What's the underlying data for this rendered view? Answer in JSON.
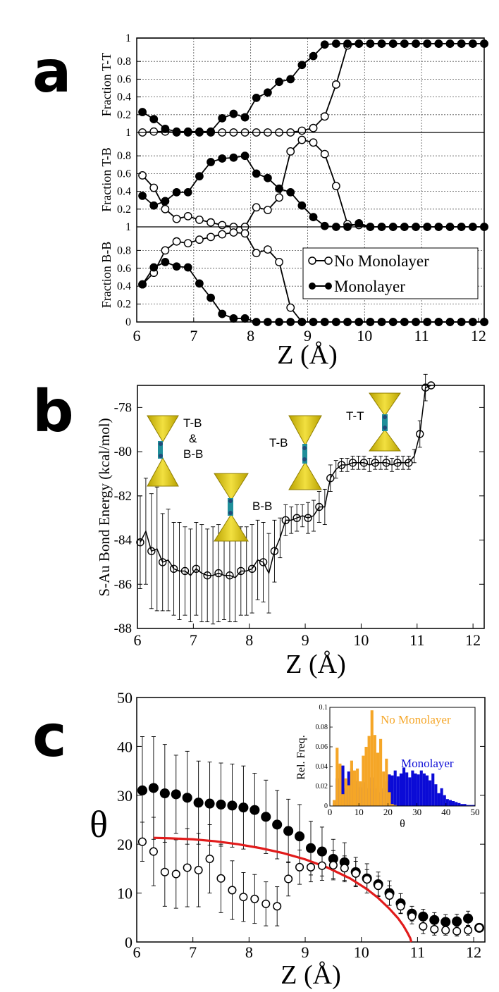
{
  "panels": {
    "a": "a",
    "b": "b",
    "c": "c"
  },
  "chart_data": [
    {
      "type": "line",
      "panel": "a",
      "xlabel": "Z (Å)",
      "xlim": [
        6,
        12.1
      ],
      "x_ticks": [
        "6",
        "7",
        "8",
        "9",
        "10",
        "11",
        "12"
      ],
      "y_ticks_top": [
        "1",
        "0.8",
        "0.6",
        "0.4",
        "0.2"
      ],
      "y_ticks_mid": [
        "1",
        "0.8",
        "0.6",
        "0.4",
        "0.2"
      ],
      "y_ticks_bot": [
        "1",
        "0.8",
        "0.6",
        "0.4",
        "0.2",
        "0"
      ],
      "legend": [
        "No Monolayer",
        "Monolayer"
      ],
      "x": [
        6.1,
        6.3,
        6.5,
        6.7,
        6.9,
        7.1,
        7.3,
        7.5,
        7.7,
        7.9,
        8.1,
        8.3,
        8.5,
        8.7,
        8.9,
        9.1,
        9.3,
        9.5,
        9.7,
        9.9,
        10.1,
        10.3,
        10.5,
        10.7,
        10.9,
        11.1,
        11.3,
        11.5,
        11.7,
        11.9,
        12.1
      ],
      "subplots": [
        {
          "ylabel": "Fraction T-T",
          "series": [
            {
              "name": "No Monolayer",
              "values": [
                0,
                0.01,
                0.01,
                0,
                0,
                0,
                0,
                0,
                0,
                0,
                0,
                0,
                0,
                0,
                0.02,
                0.05,
                0.18,
                0.54,
                0.98,
                1,
                1,
                1,
                1,
                1,
                1,
                1,
                1,
                1,
                1,
                1,
                1
              ]
            },
            {
              "name": "Monolayer",
              "values": [
                0.23,
                0.15,
                0.04,
                0.01,
                0.01,
                0.01,
                0.01,
                0.16,
                0.21,
                0.17,
                0.39,
                0.45,
                0.57,
                0.6,
                0.76,
                0.86,
                0.99,
                1,
                1,
                1,
                1,
                1,
                1,
                1,
                1,
                1,
                1,
                1,
                1,
                1,
                1
              ]
            }
          ]
        },
        {
          "ylabel": "Fraction T-B",
          "series": [
            {
              "name": "No Monolayer",
              "values": [
                0.58,
                0.44,
                0.2,
                0.09,
                0.12,
                0.08,
                0.05,
                0.02,
                0,
                0,
                0.22,
                0.19,
                0.33,
                0.85,
                0.98,
                0.95,
                0.82,
                0.46,
                0.03,
                0.02,
                0,
                0,
                0,
                0,
                0,
                0,
                0,
                0,
                0,
                0,
                0
              ]
            },
            {
              "name": "Monolayer",
              "values": [
                0.35,
                0.24,
                0.29,
                0.39,
                0.39,
                0.57,
                0.73,
                0.77,
                0.78,
                0.8,
                0.6,
                0.55,
                0.43,
                0.39,
                0.24,
                0.11,
                0.01,
                0,
                0,
                0.04,
                0,
                0,
                0,
                0,
                0,
                0,
                0,
                0,
                0,
                0,
                0
              ]
            }
          ]
        },
        {
          "ylabel": "Fraction B-B",
          "series": [
            {
              "name": "No Monolayer",
              "values": [
                0.42,
                0.55,
                0.8,
                0.9,
                0.88,
                0.92,
                0.95,
                0.98,
                1,
                0.99,
                0.77,
                0.81,
                0.67,
                0.16,
                0,
                0,
                0,
                0,
                0,
                0,
                0,
                0,
                0,
                0,
                0,
                0,
                0,
                0,
                0,
                0,
                0
              ]
            },
            {
              "name": "Monolayer",
              "values": [
                0.42,
                0.61,
                0.67,
                0.62,
                0.61,
                0.43,
                0.27,
                0.09,
                0.04,
                0.04,
                0,
                0,
                0,
                0,
                0,
                0,
                0,
                0,
                0,
                0,
                0,
                0,
                0,
                0,
                0,
                0,
                0,
                0,
                0,
                0,
                0
              ]
            }
          ]
        }
      ]
    },
    {
      "type": "line",
      "panel": "b",
      "xlabel": "Z (Å)",
      "ylabel": "S-Au Bond Energy (kcal/mol)",
      "xlim": [
        6,
        12.2
      ],
      "ylim": [
        -88,
        -77
      ],
      "x_ticks": [
        "6",
        "7",
        "8",
        "9",
        "10",
        "11",
        "12"
      ],
      "y_ticks": [
        "-78",
        "-80",
        "-82",
        "-84",
        "-86",
        "-88"
      ],
      "annotations": [
        "T-B",
        "&",
        "B-B",
        "B-B",
        "T-B",
        "T-T"
      ],
      "x": [
        6.05,
        6.15,
        6.25,
        6.35,
        6.45,
        6.55,
        6.65,
        6.75,
        6.85,
        6.95,
        7.05,
        7.15,
        7.25,
        7.35,
        7.45,
        7.55,
        7.65,
        7.75,
        7.85,
        7.95,
        8.05,
        8.15,
        8.25,
        8.35,
        8.45,
        8.55,
        8.65,
        8.75,
        8.85,
        8.95,
        9.05,
        9.15,
        9.25,
        9.35,
        9.45,
        9.55,
        9.65,
        9.75,
        9.85,
        9.95,
        10.05,
        10.15,
        10.25,
        10.35,
        10.45,
        10.55,
        10.65,
        10.75,
        10.85,
        10.95,
        11.05,
        11.15,
        11.25
      ],
      "values": [
        -84.1,
        -83.6,
        -84.5,
        -84.4,
        -85,
        -84.9,
        -85.3,
        -85.4,
        -85.4,
        -85.6,
        -85.3,
        -85.5,
        -85.6,
        -85.6,
        -85.5,
        -85.6,
        -85.6,
        -85.7,
        -85.4,
        -85.4,
        -85.3,
        -84.9,
        -85,
        -85.5,
        -84.5,
        -83.9,
        -83.1,
        -83.1,
        -83,
        -82.9,
        -83,
        -82.9,
        -82.5,
        -82.5,
        -81.2,
        -80.8,
        -80.6,
        -80.6,
        -80.5,
        -80.5,
        -80.5,
        -80.6,
        -80.5,
        -80.5,
        -80.5,
        -80.6,
        -80.5,
        -80.5,
        -80.5,
        -80.2,
        -79.2,
        -77.1,
        -77
      ],
      "errors": [
        2.1,
        2.4,
        2.6,
        2.8,
        2.2,
        2.3,
        2.1,
        2.2,
        2.0,
        2.1,
        2.1,
        2.2,
        2.1,
        2.2,
        2.2,
        2.0,
        2.1,
        2.0,
        2.0,
        2.0,
        2.0,
        1.8,
        1.8,
        1.8,
        1.4,
        0.9,
        0.7,
        0.6,
        0.6,
        0.5,
        0.7,
        0.7,
        0.7,
        0.8,
        0.6,
        0.4,
        0.3,
        0.3,
        0.3,
        0.3,
        0.3,
        0.3,
        0.3,
        0.3,
        0.3,
        0.3,
        0.3,
        0.3,
        0.3,
        0.3,
        0.6,
        0.6,
        0
      ]
    },
    {
      "type": "scatter",
      "panel": "c",
      "xlabel": "Z (Å)",
      "ylabel": "θ",
      "xlim": [
        6,
        12.2
      ],
      "ylim": [
        0,
        50
      ],
      "x_ticks": [
        "6",
        "7",
        "8",
        "9",
        "10",
        "11",
        "12"
      ],
      "y_ticks": [
        "50",
        "40",
        "30",
        "20",
        "10",
        "0"
      ],
      "series": [
        {
          "name": "Monolayer",
          "x": [
            6.1,
            6.3,
            6.5,
            6.7,
            6.9,
            7.1,
            7.3,
            7.5,
            7.7,
            7.9,
            8.1,
            8.3,
            8.5,
            8.7,
            8.9,
            9.1,
            9.3,
            9.5,
            9.7,
            9.9,
            10.1,
            10.3,
            10.5,
            10.7,
            10.9,
            11.1,
            11.3,
            11.5,
            11.7,
            11.9,
            12.1
          ],
          "values": [
            31,
            31.5,
            30.4,
            30.2,
            29.5,
            28.5,
            28.3,
            28.1,
            27.9,
            27.5,
            27,
            25.6,
            24,
            22.7,
            21.6,
            19.2,
            18.5,
            17,
            16.3,
            14.3,
            13,
            11.8,
            10,
            7.9,
            5.8,
            5.2,
            4.5,
            4.1,
            4.2,
            4.8,
            2.9
          ],
          "errors": [
            11,
            10.5,
            10,
            8,
            9.5,
            8.5,
            8.5,
            8.5,
            8.5,
            8.5,
            7.5,
            7.5,
            7,
            6.5,
            6.5,
            5.5,
            5,
            4,
            4,
            3,
            3,
            2.5,
            2.5,
            2,
            1.5,
            1.5,
            1.5,
            1.5,
            1.5,
            1.5,
            0
          ]
        },
        {
          "name": "No Monolayer",
          "x": [
            6.1,
            6.3,
            6.5,
            6.7,
            6.9,
            7.1,
            7.3,
            7.5,
            7.7,
            7.9,
            8.1,
            8.3,
            8.5,
            8.7,
            8.9,
            9.1,
            9.3,
            9.5,
            9.7,
            9.9,
            10.1,
            10.3,
            10.5,
            10.7,
            10.9,
            11.1,
            11.3,
            11.5,
            11.7,
            11.9,
            12.1
          ],
          "values": [
            20.5,
            18.5,
            14.3,
            13.9,
            15.2,
            14.7,
            17,
            13,
            10.6,
            9.2,
            8.8,
            7.8,
            7.3,
            12.9,
            15.3,
            15.3,
            15.6,
            15.7,
            15.1,
            14,
            12.8,
            11.5,
            9.5,
            7.3,
            5.2,
            3.2,
            2.6,
            2.4,
            2.2,
            2.4,
            2.9
          ],
          "errors": [
            4,
            7,
            7,
            7,
            8,
            7.5,
            7,
            7,
            6,
            5,
            5,
            4.5,
            4,
            3.5,
            3.5,
            3,
            3,
            3,
            2.5,
            2.5,
            2,
            2,
            2,
            1.5,
            1.5,
            1.5,
            1.2,
            1,
            1,
            1,
            0
          ]
        }
      ],
      "fit_curve": {
        "name": "fit",
        "color": "#e11b1b",
        "x": [
          6.3,
          6.6,
          7,
          7.4,
          7.8,
          8.2,
          8.6,
          9,
          9.4,
          9.8,
          10.1,
          10.3,
          10.5,
          10.65,
          10.75,
          10.82,
          10.87,
          10.89
        ],
        "values": [
          21.3,
          21.2,
          21,
          20.6,
          20,
          19.2,
          18.2,
          16.9,
          15.2,
          13,
          10.8,
          9,
          6.8,
          4.9,
          3.3,
          1.9,
          0.8,
          0
        ]
      },
      "inset": {
        "type": "bar",
        "xlabel": "θ",
        "ylabel": "Rel. Freq.",
        "xlim": [
          0,
          50
        ],
        "ylim": [
          0,
          0.1
        ],
        "x_ticks": [
          "0",
          "10",
          "20",
          "30",
          "40",
          "50"
        ],
        "y_ticks": [
          "0.1",
          "0.08",
          "0.06",
          "0.04",
          "0.02",
          "0"
        ],
        "bin_width": 1,
        "series": [
          {
            "name": "Monolayer",
            "color": "#0b0bd6",
            "values": [
              0,
              0.003,
              0.028,
              0.041,
              0.041,
              0.018,
              0.035,
              0.038,
              0.022,
              0.025,
              0.019,
              0.024,
              0.022,
              0.018,
              0.029,
              0.018,
              0.021,
              0.014,
              0.018,
              0.025,
              0.032,
              0.031,
              0.036,
              0.03,
              0.033,
              0.039,
              0.034,
              0.029,
              0.036,
              0.033,
              0.032,
              0.036,
              0.033,
              0.031,
              0.026,
              0.033,
              0.022,
              0.013,
              0.018,
              0.011,
              0.007,
              0.006,
              0.005,
              0.004,
              0.003,
              0.002,
              0.002,
              0.001,
              0.001,
              0.001
            ]
          },
          {
            "name": "No Monolayer",
            "color": "#f5a627",
            "values": [
              0,
              0.006,
              0.059,
              0.043,
              0.012,
              0.028,
              0.021,
              0.046,
              0.036,
              0.038,
              0.025,
              0.051,
              0.06,
              0.071,
              0.097,
              0.072,
              0.054,
              0.068,
              0.035,
              0.048,
              0.014,
              0.002,
              0.001,
              0,
              0,
              0,
              0,
              0,
              0,
              0,
              0,
              0,
              0,
              0,
              0,
              0,
              0,
              0,
              0,
              0,
              0,
              0,
              0,
              0,
              0,
              0,
              0,
              0,
              0,
              0
            ]
          }
        ]
      }
    }
  ]
}
